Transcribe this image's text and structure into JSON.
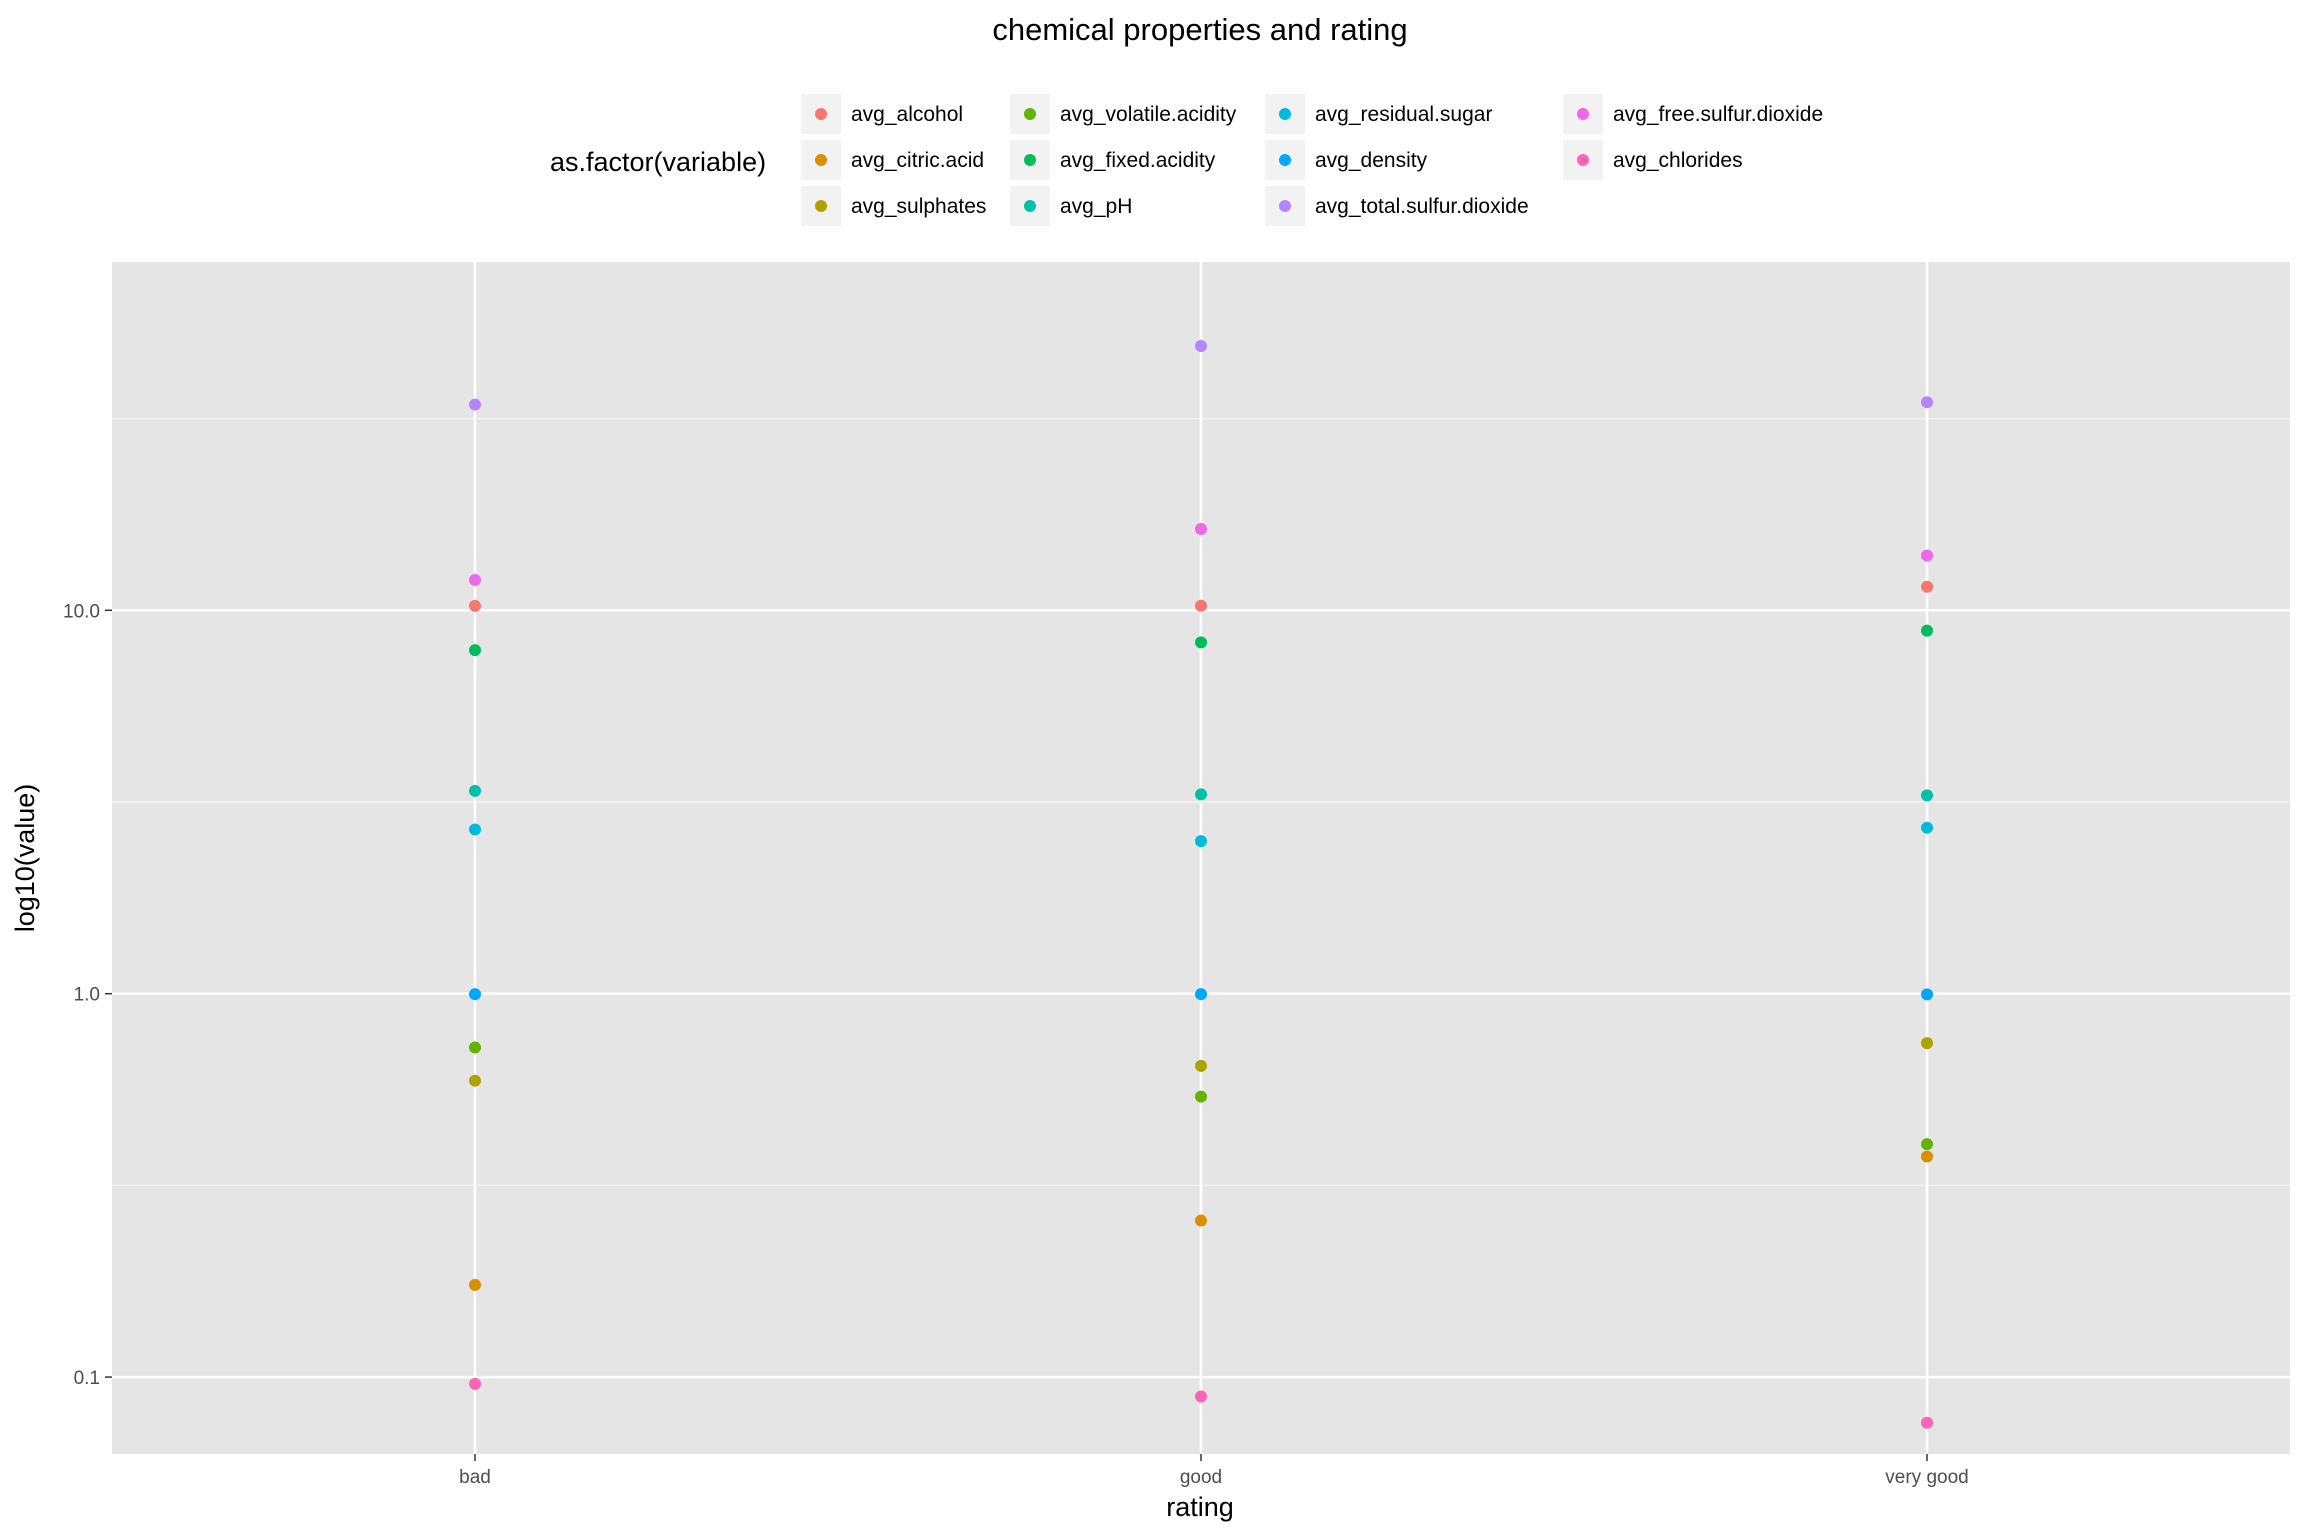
{
  "chart_data": {
    "type": "scatter",
    "title": "chemical properties and rating",
    "xlabel": "rating",
    "ylabel": "log10(value)",
    "y_scale": "log10",
    "ylim": [
      0.063,
      81.0
    ],
    "categories": [
      "bad",
      "good",
      "very good"
    ],
    "y_ticks": [
      0.1,
      1.0,
      10.0
    ],
    "y_tick_labels": [
      "0.1",
      "1.0",
      "10.0"
    ],
    "grid": true,
    "legend": {
      "title": "as.factor(variable)",
      "position": "top"
    },
    "series": [
      {
        "name": "avg_alcohol",
        "color": "#F8766D",
        "values": [
          10.27,
          10.28,
          11.52
        ]
      },
      {
        "name": "avg_citric.acid",
        "color": "#DB8E00",
        "values": [
          0.174,
          0.256,
          0.376
        ]
      },
      {
        "name": "avg_sulphates",
        "color": "#AEA200",
        "values": [
          0.593,
          0.648,
          0.743
        ]
      },
      {
        "name": "avg_volatile.acidity",
        "color": "#64B200",
        "values": [
          0.724,
          0.539,
          0.405
        ]
      },
      {
        "name": "avg_fixed.acidity",
        "color": "#00BD5C",
        "values": [
          7.87,
          8.25,
          8.85
        ]
      },
      {
        "name": "avg_pH",
        "color": "#00C1A7",
        "values": [
          3.38,
          3.31,
          3.29
        ]
      },
      {
        "name": "avg_residual.sugar",
        "color": "#00BADE",
        "values": [
          2.68,
          2.5,
          2.71
        ]
      },
      {
        "name": "avg_density",
        "color": "#00A6FF",
        "values": [
          0.997,
          0.997,
          0.996
        ]
      },
      {
        "name": "avg_total.sulfur.dioxide",
        "color": "#B385FF",
        "values": [
          34.4,
          48.9,
          34.9
        ]
      },
      {
        "name": "avg_free.sulfur.dioxide",
        "color": "#EF67EB",
        "values": [
          12.0,
          16.3,
          13.9
        ]
      },
      {
        "name": "avg_chlorides",
        "color": "#FF63B6",
        "values": [
          0.096,
          0.089,
          0.076
        ]
      }
    ]
  }
}
